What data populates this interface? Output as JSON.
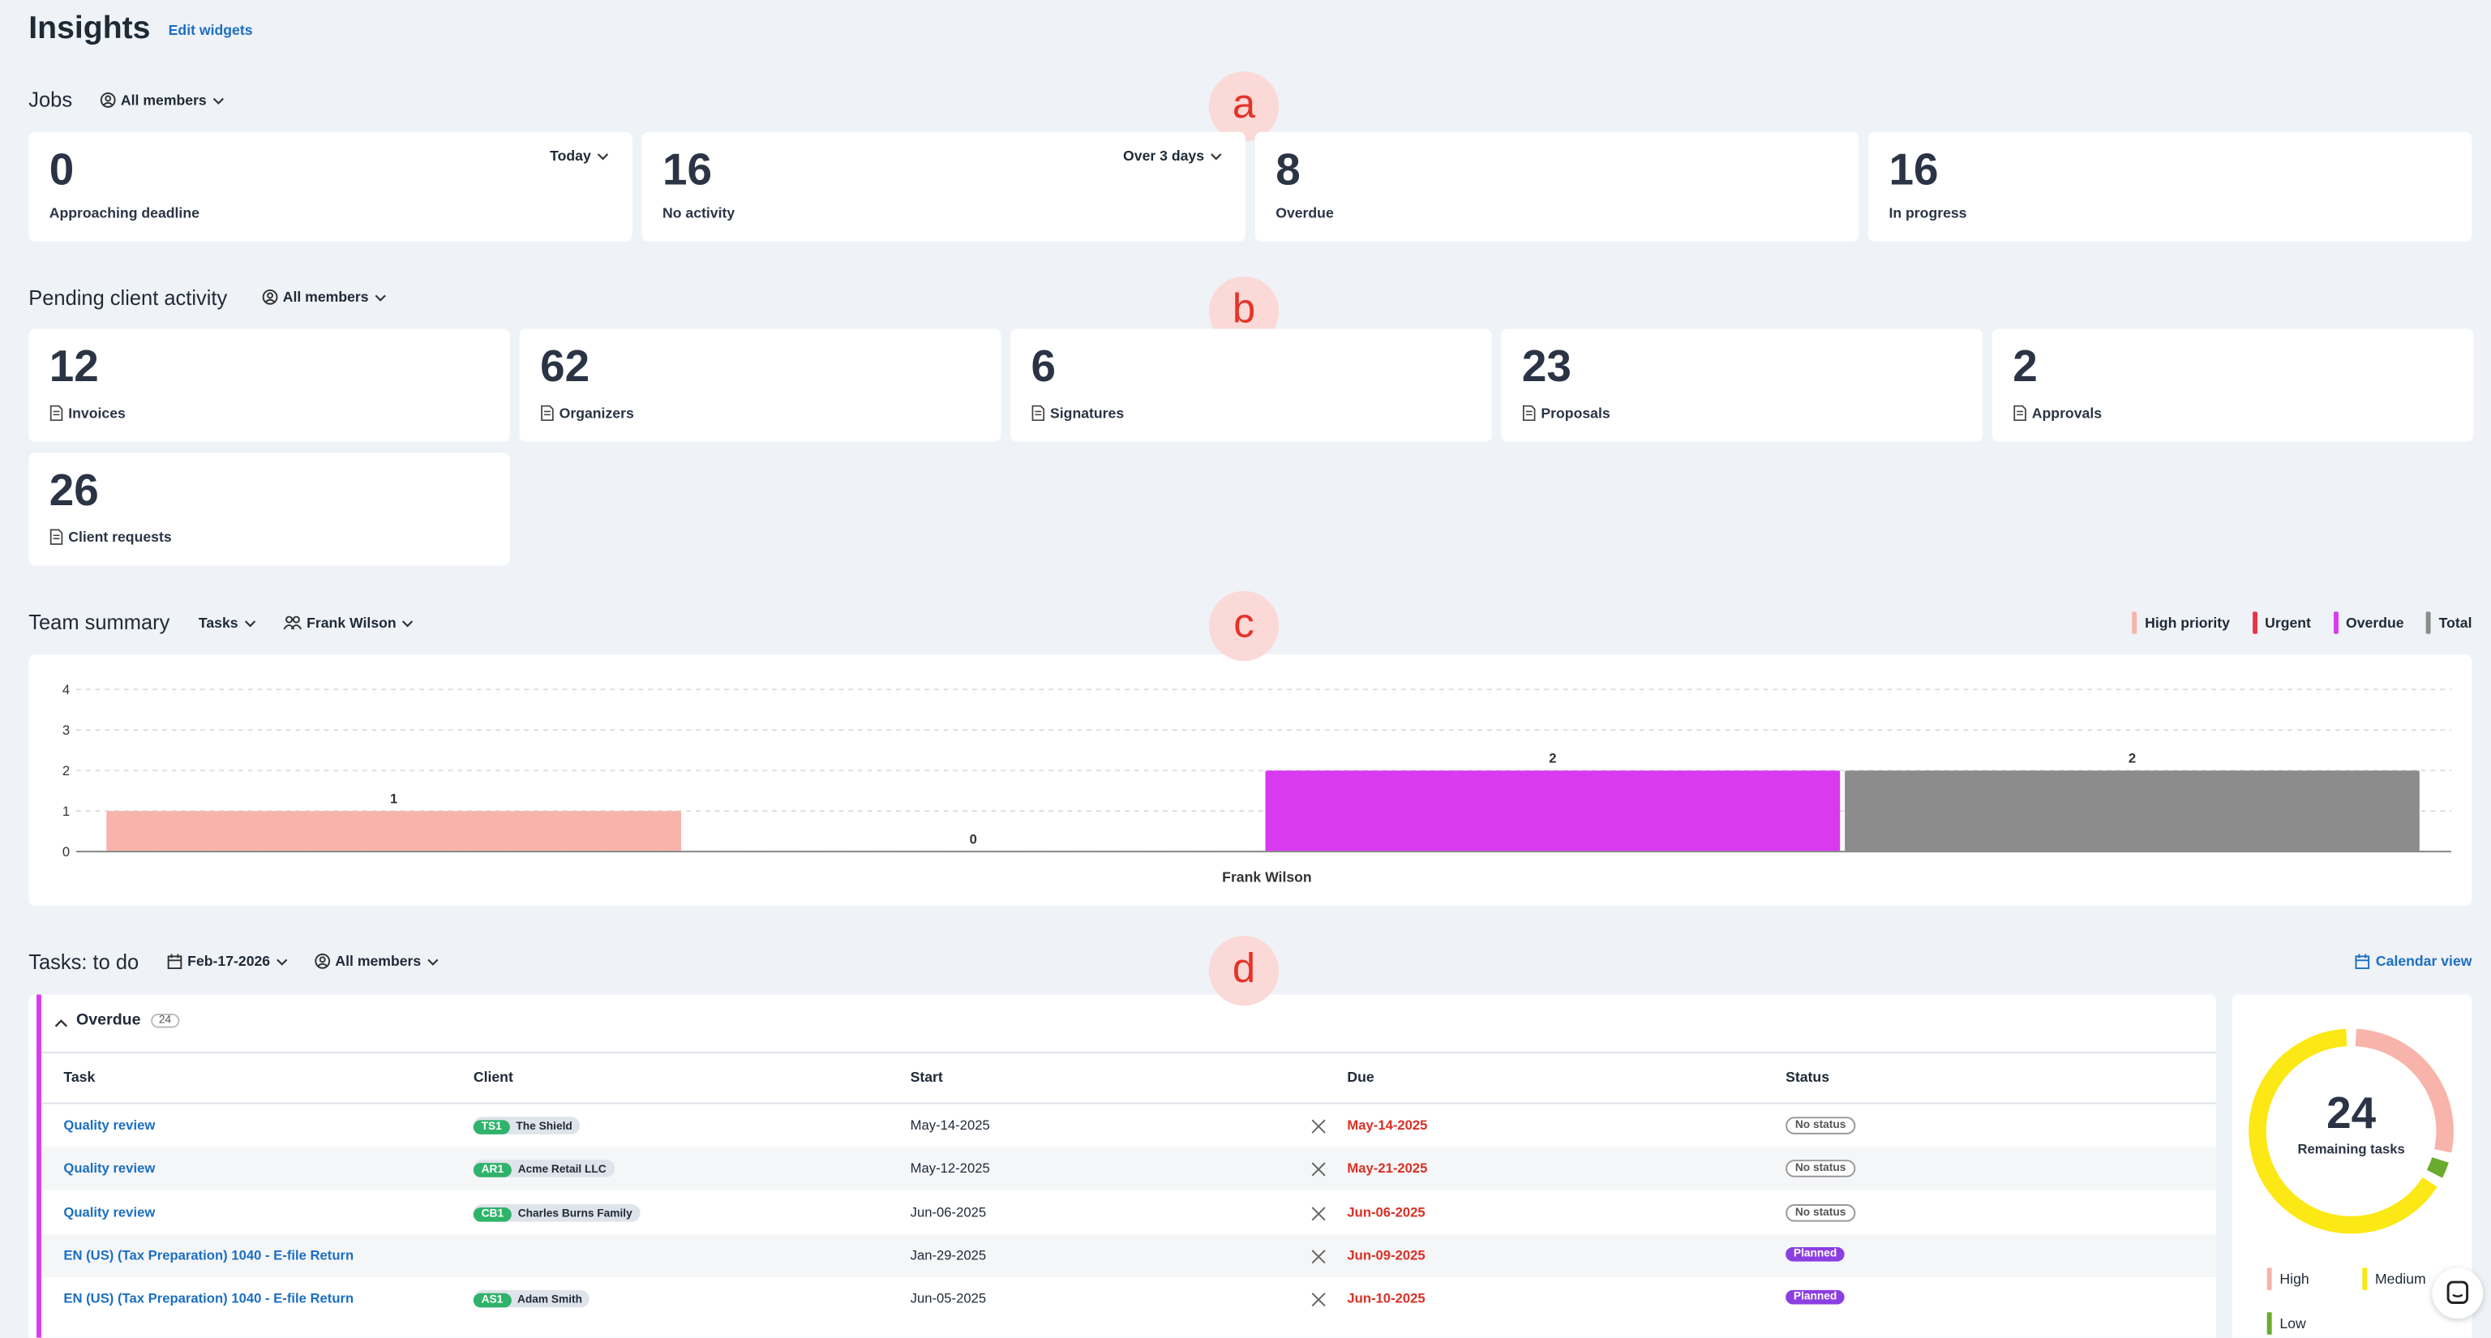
{
  "header": {
    "title": "Insights",
    "edit": "Edit widgets"
  },
  "markers": [
    "a",
    "b",
    "c",
    "d"
  ],
  "jobs": {
    "title": "Jobs",
    "filter": "All members",
    "cards": [
      {
        "value": 0,
        "label": "Approaching deadline",
        "filter": "Today"
      },
      {
        "value": 16,
        "label": "No activity",
        "filter": "Over 3 days"
      },
      {
        "value": 8,
        "label": "Overdue"
      },
      {
        "value": 16,
        "label": "In progress"
      }
    ]
  },
  "pending": {
    "title": "Pending client activity",
    "filter": "All members",
    "cards": [
      {
        "value": 12,
        "label": "Invoices"
      },
      {
        "value": 62,
        "label": "Organizers"
      },
      {
        "value": 6,
        "label": "Signatures"
      },
      {
        "value": 23,
        "label": "Proposals"
      },
      {
        "value": 2,
        "label": "Approvals"
      },
      {
        "value": 26,
        "label": "Client requests"
      }
    ]
  },
  "team": {
    "title": "Team summary",
    "filters": [
      "Tasks",
      "Frank Wilson"
    ],
    "chart": {
      "type": "bar",
      "categories": [
        "Frank Wilson"
      ],
      "series": [
        {
          "name": "High priority",
          "color": "#f8b4aa",
          "values": [
            1
          ]
        },
        {
          "name": "Urgent",
          "color": "#e8344a",
          "values": [
            0
          ]
        },
        {
          "name": "Overdue",
          "color": "#d93af0",
          "values": [
            2
          ]
        },
        {
          "name": "Total",
          "color": "#8c8c8c",
          "values": [
            2
          ]
        }
      ],
      "ylim": [
        0,
        4
      ],
      "yticks": [
        0,
        1,
        2,
        3,
        4
      ],
      "grid": true
    }
  },
  "tasks": {
    "title": "Tasks: to do",
    "date": "Feb-17-2026",
    "filter": "All members",
    "calendar": "Calendar view",
    "group": {
      "name": "Overdue",
      "count": 24
    },
    "columns": [
      "Task",
      "Client",
      "Start",
      "Due",
      "Status"
    ],
    "rows": [
      {
        "task": "Quality review",
        "client": {
          "code": "TS1",
          "name": "The Shield"
        },
        "start": "May-14-2025",
        "due": "May-14-2025",
        "status": "No status"
      },
      {
        "task": "Quality review",
        "client": {
          "code": "AR1",
          "name": "Acme Retail LLC"
        },
        "start": "May-12-2025",
        "due": "May-21-2025",
        "status": "No status"
      },
      {
        "task": "Quality review",
        "client": {
          "code": "CB1",
          "name": "Charles Burns Family"
        },
        "start": "Jun-06-2025",
        "due": "Jun-06-2025",
        "status": "No status"
      },
      {
        "task": "EN (US) (Tax Preparation) 1040 - E-file Return",
        "start": "Jan-29-2025",
        "due": "Jun-09-2025",
        "status": "Planned"
      },
      {
        "task": "EN (US) (Tax Preparation) 1040 - E-file Return",
        "client": {
          "code": "AS1",
          "name": "Adam Smith"
        },
        "start": "Jun-05-2025",
        "due": "Jun-10-2025",
        "status": "Planned"
      }
    ]
  },
  "donut": {
    "type": "pie",
    "total": 24,
    "label": "Remaining tasks",
    "segments": [
      {
        "name": "High",
        "color": "#f8b4aa",
        "value": 7
      },
      {
        "name": "Medium",
        "color": "#fbe814",
        "value": 16
      },
      {
        "name": "Low",
        "color": "#6aab2e",
        "value": 1
      }
    ]
  }
}
